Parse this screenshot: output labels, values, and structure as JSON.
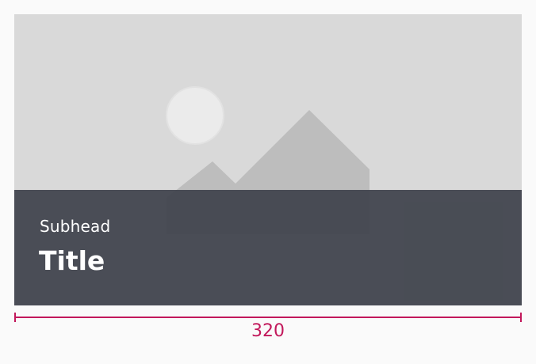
{
  "card": {
    "subhead": "Subhead",
    "title": "Title"
  },
  "media": {
    "icon": "image-placeholder-icon"
  },
  "dimension": {
    "label": "320",
    "color": "#c2185b"
  },
  "colors": {
    "page_background": "#fafafa",
    "media_background": "#d9d9d9",
    "overlay": "#3e424b",
    "text": "#ffffff"
  }
}
